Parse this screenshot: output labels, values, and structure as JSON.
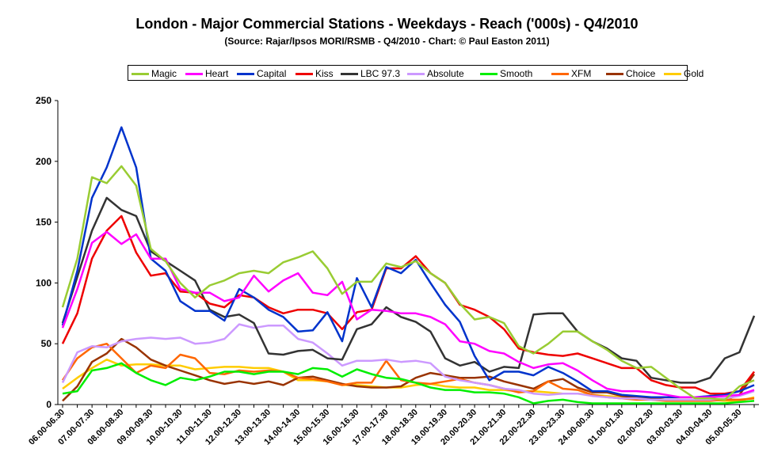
{
  "chart_data": {
    "type": "line",
    "title": "London - Major Commercial Stations - Weekdays - Reach ('000s) - Q4/2010",
    "subtitle": "(Source: Rajar/Ipsos MORI/RSMB - Q4/2010 - Chart: © Paul Easton 2011)",
    "ylim": [
      0,
      250
    ],
    "yticks": [
      0,
      50,
      100,
      150,
      200,
      250
    ],
    "grid": false,
    "legend_position": "top",
    "x_tick_labels": [
      "06.00-06.30",
      "07.00-07.30",
      "08.00-08.30",
      "09.00-09.30",
      "10.00-10.30",
      "11.00-11.30",
      "12.00-12.30",
      "13.00-13.30",
      "14.00-14.30",
      "15.00-15.30",
      "16.00-16.30",
      "17.00-17.30",
      "18.00-18.30",
      "19.00-19.30",
      "20.00-20.30",
      "21.00-21.30",
      "22.00-22.30",
      "23.00-23.30",
      "24.00-00.30",
      "01.00-01.30",
      "02.00-02.30",
      "03.00-03.30",
      "04.00-04.30",
      "05.00-05.30"
    ],
    "n_points": 48,
    "series": [
      {
        "name": "Magic",
        "color": "#99cc33",
        "values": [
          80,
          120,
          187,
          182,
          196,
          180,
          128,
          118,
          100,
          88,
          98,
          102,
          108,
          110,
          108,
          117,
          121,
          126,
          112,
          91,
          101,
          101,
          116,
          113,
          118,
          108,
          100,
          83,
          70,
          72,
          67,
          48,
          42,
          50,
          60,
          60,
          52,
          45,
          36,
          30,
          31,
          22,
          13,
          5,
          5,
          4,
          15,
          20
        ]
      },
      {
        "name": "Heart",
        "color": "#ff00ff",
        "values": [
          63,
          95,
          133,
          142,
          132,
          140,
          120,
          120,
          95,
          92,
          92,
          85,
          88,
          106,
          93,
          102,
          108,
          92,
          90,
          101,
          70,
          78,
          77,
          75,
          75,
          72,
          66,
          52,
          50,
          44,
          42,
          35,
          30,
          33,
          34,
          28,
          20,
          13,
          11,
          11,
          10,
          8,
          6,
          6,
          6,
          7,
          8,
          12
        ]
      },
      {
        "name": "Capital",
        "color": "#0033cc",
        "values": [
          65,
          110,
          170,
          195,
          228,
          195,
          120,
          110,
          85,
          77,
          77,
          69,
          95,
          88,
          78,
          72,
          60,
          61,
          76,
          52,
          104,
          80,
          113,
          108,
          119,
          100,
          82,
          68,
          40,
          20,
          27,
          27,
          24,
          31,
          26,
          19,
          11,
          11,
          8,
          7,
          6,
          6,
          6,
          6,
          7,
          8,
          11,
          16
        ]
      },
      {
        "name": "Kiss",
        "color": "#ee0000",
        "values": [
          50,
          75,
          120,
          143,
          155,
          125,
          106,
          108,
          93,
          92,
          83,
          80,
          90,
          88,
          80,
          75,
          78,
          78,
          75,
          62,
          76,
          78,
          112,
          112,
          122,
          108,
          100,
          82,
          78,
          72,
          62,
          46,
          43,
          41,
          40,
          42,
          38,
          34,
          30,
          30,
          20,
          16,
          14,
          14,
          9,
          9,
          11,
          27
        ]
      },
      {
        "name": "LBC 97.3",
        "color": "#333333",
        "values": [
          67,
          105,
          143,
          170,
          160,
          155,
          126,
          118,
          110,
          102,
          78,
          72,
          74,
          67,
          42,
          41,
          44,
          45,
          38,
          37,
          62,
          66,
          80,
          72,
          68,
          60,
          38,
          32,
          35,
          27,
          31,
          30,
          74,
          75,
          75,
          60,
          52,
          46,
          38,
          36,
          22,
          20,
          18,
          18,
          22,
          38,
          43,
          73
        ]
      },
      {
        "name": "Absolute",
        "color": "#cc99ff",
        "values": [
          18,
          43,
          48,
          47,
          52,
          54,
          55,
          54,
          55,
          50,
          51,
          54,
          66,
          63,
          65,
          65,
          54,
          51,
          42,
          32,
          36,
          36,
          37,
          35,
          36,
          34,
          23,
          20,
          18,
          16,
          13,
          12,
          9,
          8,
          9,
          9,
          7,
          6,
          5,
          5,
          4,
          4,
          4,
          4,
          4,
          5,
          7,
          11
        ]
      },
      {
        "name": "Smooth",
        "color": "#00ee00",
        "values": [
          9,
          11,
          28,
          30,
          34,
          26,
          20,
          16,
          22,
          20,
          23,
          27,
          27,
          25,
          27,
          27,
          25,
          30,
          29,
          23,
          29,
          25,
          22,
          21,
          18,
          14,
          12,
          12,
          10,
          10,
          9,
          6,
          1,
          3,
          4,
          2,
          1,
          1,
          1,
          1,
          1,
          1,
          1,
          1,
          1,
          1,
          2,
          3
        ]
      },
      {
        "name": "XFM",
        "color": "#ff6600",
        "values": [
          20,
          38,
          47,
          50,
          38,
          26,
          32,
          30,
          41,
          38,
          26,
          25,
          28,
          27,
          28,
          27,
          22,
          21,
          19,
          16,
          18,
          18,
          36,
          20,
          18,
          17,
          19,
          21,
          18,
          16,
          13,
          10,
          11,
          19,
          13,
          12,
          8,
          6,
          5,
          4,
          4,
          3,
          3,
          3,
          3,
          4,
          4,
          5
        ]
      },
      {
        "name": "Choice",
        "color": "#993300",
        "values": [
          3,
          15,
          35,
          42,
          54,
          47,
          37,
          32,
          28,
          24,
          20,
          17,
          19,
          17,
          19,
          16,
          22,
          23,
          20,
          17,
          15,
          14,
          14,
          15,
          22,
          26,
          24,
          22,
          22,
          23,
          19,
          16,
          13,
          19,
          21,
          14,
          10,
          10,
          7,
          6,
          5,
          4,
          4,
          4,
          4,
          4,
          8,
          25
        ]
      },
      {
        "name": "Gold",
        "color": "#ffcc00",
        "values": [
          13,
          22,
          30,
          37,
          32,
          33,
          33,
          32,
          32,
          29,
          30,
          31,
          31,
          30,
          30,
          27,
          20,
          20,
          19,
          16,
          16,
          15,
          14,
          14,
          16,
          17,
          15,
          14,
          14,
          12,
          12,
          11,
          11,
          10,
          9,
          9,
          8,
          7,
          6,
          6,
          5,
          4,
          4,
          4,
          4,
          3,
          3,
          6
        ]
      }
    ]
  }
}
